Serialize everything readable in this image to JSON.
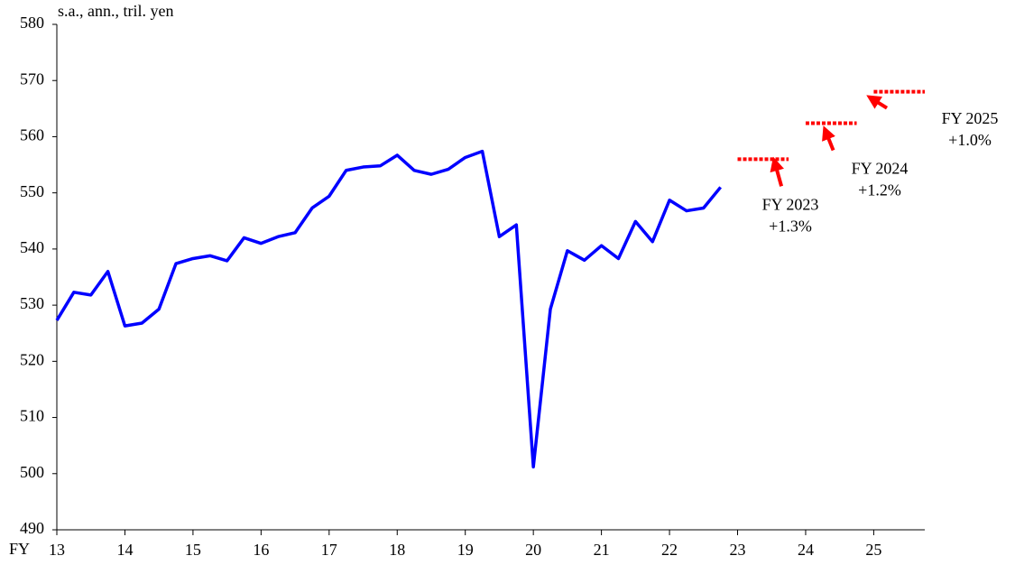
{
  "chart_data": {
    "type": "line",
    "ylabel": "s.a., ann., tril.  yen",
    "xlabel": "FY",
    "xlim": [
      13,
      25.75
    ],
    "xticks": [
      13,
      14,
      15,
      16,
      17,
      18,
      19,
      20,
      21,
      22,
      23,
      24,
      25
    ],
    "ylim": [
      490,
      580
    ],
    "yticks": [
      490,
      500,
      510,
      520,
      530,
      540,
      550,
      560,
      570,
      580
    ],
    "x": [
      13,
      13.25,
      13.5,
      13.75,
      14,
      14.25,
      14.5,
      14.75,
      15,
      15.25,
      15.5,
      15.75,
      16,
      16.25,
      16.5,
      16.75,
      17,
      17.25,
      17.5,
      17.75,
      18,
      18.25,
      18.5,
      18.75,
      19,
      19.25,
      19.5,
      19.75,
      20,
      20.25,
      20.5,
      20.75,
      21,
      21.25,
      21.5,
      21.75,
      22,
      22.25,
      22.5,
      22.75
    ],
    "series": [
      {
        "color": "#0000ff",
        "values": [
          527.3,
          532.3,
          531.8,
          536.0,
          526.3,
          526.8,
          529.3,
          537.4,
          538.3,
          538.8,
          537.9,
          542.0,
          541.0,
          542.2,
          542.9,
          547.3,
          549.4,
          554.0,
          554.6,
          554.8,
          556.7,
          554.0,
          553.3,
          554.2,
          556.3,
          557.4,
          542.2,
          544.3,
          501.2,
          529.3,
          539.7,
          538.0,
          540.6,
          538.3,
          544.9,
          541.3,
          548.7,
          546.8,
          547.3,
          551.0
        ]
      }
    ],
    "forecasts": [
      {
        "start": 23,
        "end": 23.75,
        "value": 556,
        "color": "#ff0000",
        "label": [
          "FY 2023",
          "+1.3%"
        ]
      },
      {
        "start": 24,
        "end": 24.75,
        "value": 562.4,
        "color": "#ff0000",
        "label": [
          "FY 2024",
          "+1.2%"
        ]
      },
      {
        "start": 25,
        "end": 25.75,
        "value": 568,
        "color": "#ff0000",
        "label": [
          "FY 2025",
          "+1.0%"
        ]
      }
    ]
  }
}
